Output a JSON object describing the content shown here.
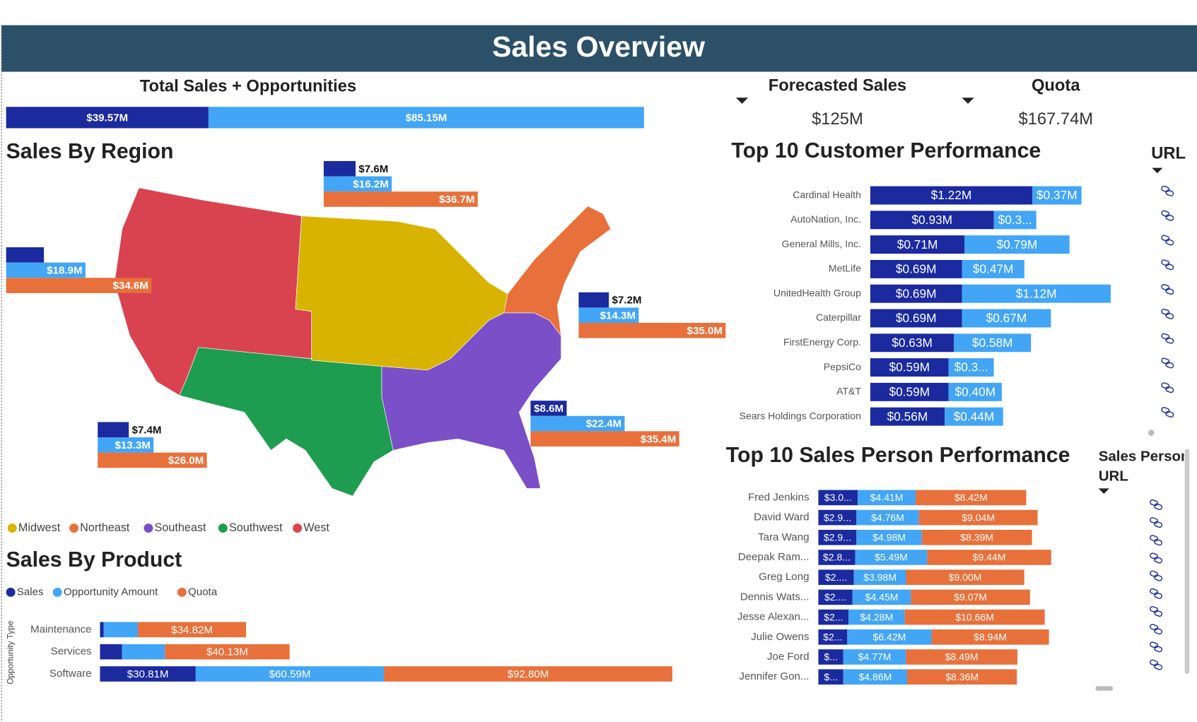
{
  "header": {
    "title": "Sales Overview"
  },
  "kpis": [
    {
      "label": "Forecasted Sales",
      "value": "$125M"
    },
    {
      "label": "Quota",
      "value": "$167.74M"
    }
  ],
  "customer_links": {
    "header": "URL"
  },
  "sales_person_links": {
    "header": "Sales Person URL"
  },
  "chart_data": [
    {
      "type": "stacked-bar",
      "orientation": "horizontal",
      "title": "Total Sales + Opportunities",
      "categories": [
        null
      ],
      "series": [
        {
          "color": "#1b2a9f",
          "values": [
            39.57
          ],
          "value_labels": [
            "$39.57M"
          ]
        },
        {
          "color": "#42a5f5",
          "values": [
            85.15
          ],
          "value_labels": [
            "$85.15M"
          ]
        }
      ]
    },
    {
      "type": "map",
      "title": "Sales By Region",
      "categories": [
        "Midwest",
        "Northeast",
        "Southeast",
        "Southwest",
        "West"
      ],
      "colors": [
        "#d8b400",
        "#e8703a",
        "#7b4fc8",
        "#1e9c50",
        "#d8434f"
      ],
      "legend": "bottom-left",
      "series": [
        {
          "color": "#1b2a9f",
          "values": [
            7.6,
            7.2,
            8.6,
            7.4,
            9.0
          ],
          "value_labels": [
            "$7.6M",
            "$7.2M",
            "$8.6M",
            "$7.4M",
            null
          ]
        },
        {
          "color": "#42a5f5",
          "values": [
            16.2,
            14.3,
            22.4,
            13.3,
            18.9
          ],
          "value_labels": [
            "$16.2M",
            "$14.3M",
            "$22.4M",
            "$13.3M",
            "$18.9M"
          ]
        },
        {
          "color": "#e8703a",
          "values": [
            36.7,
            35.0,
            35.4,
            26.0,
            34.6
          ],
          "value_labels": [
            "$36.7M",
            "$35.0M",
            "$35.4M",
            "$26.0M",
            "$34.6M"
          ]
        }
      ]
    },
    {
      "type": "stacked-bar",
      "orientation": "horizontal",
      "title": "Sales By Product",
      "y_label": "Opportunity Type",
      "legend": "top-left",
      "categories": [
        "Maintenance",
        "Services",
        "Software"
      ],
      "series": [
        {
          "name": "Sales",
          "color": "#1b2a9f",
          "values": [
            1.2,
            7.1,
            30.81
          ],
          "value_labels": [
            null,
            null,
            "$30.81M"
          ]
        },
        {
          "name": "Opportunity Amount",
          "color": "#42a5f5",
          "values": [
            11.0,
            13.8,
            60.59
          ],
          "value_labels": [
            null,
            null,
            "$60.59M"
          ]
        },
        {
          "name": "Quota",
          "color": "#e8703a",
          "values": [
            34.82,
            40.13,
            92.8
          ],
          "value_labels": [
            "$34.82M",
            "$40.13M",
            "$92.80M"
          ]
        }
      ]
    },
    {
      "type": "stacked-bar",
      "orientation": "horizontal",
      "title": "Top 10 Customer Performance",
      "categories": [
        "Cardinal Health",
        "AutoNation, Inc.",
        "General Mills, Inc.",
        "MetLife",
        "UnitedHealth Group",
        "Caterpillar",
        "FirstEnergy Corp.",
        "PepsiCo",
        "AT&T",
        "Sears Holdings Corporation"
      ],
      "series": [
        {
          "color": "#1b2a9f",
          "values": [
            1.22,
            0.93,
            0.71,
            0.69,
            0.69,
            0.69,
            0.63,
            0.59,
            0.59,
            0.56
          ],
          "value_labels": [
            "$1.22M",
            "$0.93M",
            "$0.71M",
            "$0.69M",
            "$0.69M",
            "$0.69M",
            "$0.63M",
            "$0.59M",
            "$0.59M",
            "$0.56M"
          ]
        },
        {
          "color": "#42a5f5",
          "values": [
            0.37,
            0.32,
            0.79,
            0.47,
            1.12,
            0.67,
            0.58,
            0.34,
            0.4,
            0.44
          ],
          "value_labels": [
            "$0.37M",
            "$0.3...",
            "$0.79M",
            "$0.47M",
            "$1.12M",
            "$0.67M",
            "$0.58M",
            "$0.3...",
            "$0.40M",
            "$0.44M"
          ]
        }
      ]
    },
    {
      "type": "stacked-bar",
      "orientation": "horizontal",
      "title": "Top 10 Sales Person Performance",
      "categories": [
        "Fred Jenkins",
        "David Ward",
        "Tara Wang",
        "Deepak Ram...",
        "Greg Long",
        "Dennis Wats...",
        "Jesse Alexan...",
        "Julie Owens",
        "Joe Ford",
        "Jennifer Gon..."
      ],
      "series": [
        {
          "color": "#1b2a9f",
          "values": [
            3.0,
            2.9,
            2.9,
            2.8,
            2.7,
            2.6,
            2.3,
            2.2,
            1.9,
            1.9
          ],
          "value_labels": [
            "$3.0...",
            "$2.9...",
            "$2.9...",
            "$2.8...",
            "$2....",
            "$2....",
            "$2...",
            "$2...",
            "$...",
            "$..."
          ]
        },
        {
          "color": "#42a5f5",
          "values": [
            4.41,
            4.76,
            4.98,
            5.49,
            3.98,
            4.45,
            4.28,
            6.42,
            4.77,
            4.86
          ],
          "value_labels": [
            "$4.41M",
            "$4.76M",
            "$4.98M",
            "$5.49M",
            "$3.98M",
            "$4.45M",
            "$4.28M",
            "$6.42M",
            "$4.77M",
            "$4.86M"
          ]
        },
        {
          "color": "#e8703a",
          "values": [
            8.42,
            9.04,
            8.39,
            9.44,
            9.0,
            9.07,
            10.66,
            8.94,
            8.49,
            8.36
          ],
          "value_labels": [
            "$8.42M",
            "$9.04M",
            "$8.39M",
            "$9.44M",
            "$9.00M",
            "$9.07M",
            "$10.66M",
            "$8.94M",
            "$8.49M",
            "$8.36M"
          ]
        }
      ]
    }
  ]
}
